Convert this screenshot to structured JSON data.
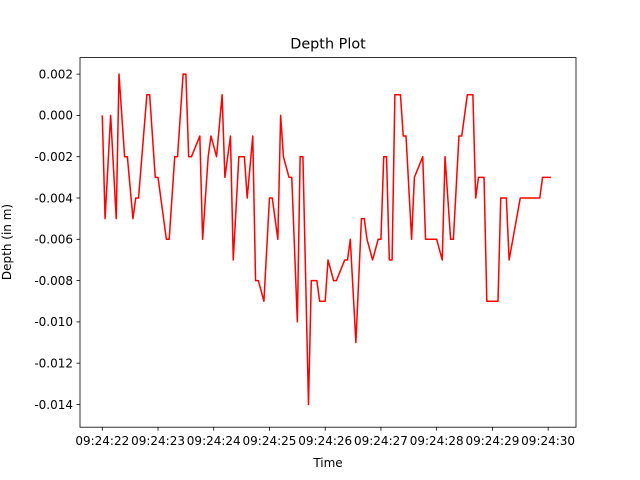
{
  "chart_data": {
    "type": "line",
    "title": "Depth Plot",
    "xlabel": "Time",
    "ylabel": "Depth (in m)",
    "x_ticks": [
      "09:24:22",
      "09:24:23",
      "09:24:24",
      "09:24:25",
      "09:24:26",
      "09:24:27",
      "09:24:28",
      "09:24:29",
      "09:24:30"
    ],
    "y_ticks": [
      "0.002",
      "0.000",
      "-0.002",
      "-0.004",
      "-0.006",
      "-0.008",
      "-0.010",
      "-0.012",
      "-0.014"
    ],
    "xlim": [
      21.6,
      30.5
    ],
    "ylim": [
      -0.0151,
      0.0028
    ],
    "grid": false,
    "series": [
      {
        "color": "#ff0000",
        "x_unit": "seconds after 09:24:00",
        "x": [
          22.0,
          22.05,
          22.15,
          22.25,
          22.3,
          22.4,
          22.45,
          22.55,
          22.6,
          22.65,
          22.8,
          22.85,
          22.95,
          23.0,
          23.15,
          23.2,
          23.3,
          23.35,
          23.45,
          23.5,
          23.55,
          23.6,
          23.75,
          23.8,
          23.9,
          23.95,
          24.05,
          24.15,
          24.2,
          24.3,
          24.35,
          24.45,
          24.55,
          24.6,
          24.7,
          24.75,
          24.8,
          24.9,
          25.0,
          25.05,
          25.15,
          25.2,
          25.25,
          25.35,
          25.4,
          25.5,
          25.55,
          25.6,
          25.7,
          25.75,
          25.85,
          25.9,
          26.0,
          26.05,
          26.15,
          26.2,
          26.35,
          26.4,
          26.45,
          26.55,
          26.65,
          26.7,
          26.75,
          26.85,
          26.95,
          27.0,
          27.05,
          27.1,
          27.15,
          27.2,
          27.25,
          27.35,
          27.4,
          27.45,
          27.55,
          27.6,
          27.75,
          27.8,
          27.85,
          27.95,
          28.0,
          28.1,
          28.15,
          28.25,
          28.3,
          28.4,
          28.45,
          28.55,
          28.65,
          28.7,
          28.75,
          28.85,
          28.9,
          28.95,
          29.0,
          29.1,
          29.15,
          29.2,
          29.25,
          29.3,
          29.5,
          29.55,
          29.7,
          29.75,
          29.85,
          29.9,
          30.05
        ],
        "y": [
          0.0,
          -0.005,
          0.0,
          -0.005,
          0.002,
          -0.002,
          -0.002,
          -0.005,
          -0.004,
          -0.004,
          0.001,
          0.001,
          -0.003,
          -0.003,
          -0.006,
          -0.006,
          -0.002,
          -0.002,
          0.002,
          0.002,
          -0.002,
          -0.002,
          -0.001,
          -0.006,
          -0.002,
          -0.001,
          -0.002,
          0.001,
          -0.003,
          -0.001,
          -0.007,
          -0.002,
          -0.002,
          -0.004,
          -0.001,
          -0.008,
          -0.008,
          -0.009,
          -0.004,
          -0.004,
          -0.006,
          0.0,
          -0.002,
          -0.003,
          -0.003,
          -0.01,
          -0.002,
          -0.002,
          -0.014,
          -0.008,
          -0.008,
          -0.009,
          -0.009,
          -0.007,
          -0.008,
          -0.008,
          -0.007,
          -0.007,
          -0.006,
          -0.011,
          -0.005,
          -0.005,
          -0.006,
          -0.007,
          -0.006,
          -0.006,
          -0.002,
          -0.002,
          -0.007,
          -0.007,
          0.001,
          0.001,
          -0.001,
          -0.001,
          -0.006,
          -0.003,
          -0.002,
          -0.006,
          -0.006,
          -0.006,
          -0.006,
          -0.007,
          -0.002,
          -0.006,
          -0.006,
          -0.001,
          -0.001,
          0.001,
          0.001,
          -0.004,
          -0.003,
          -0.003,
          -0.009,
          -0.009,
          -0.009,
          -0.009,
          -0.004,
          -0.004,
          -0.004,
          -0.007,
          -0.004,
          -0.004,
          -0.004,
          -0.004,
          -0.004,
          -0.003,
          -0.003
        ]
      }
    ]
  }
}
